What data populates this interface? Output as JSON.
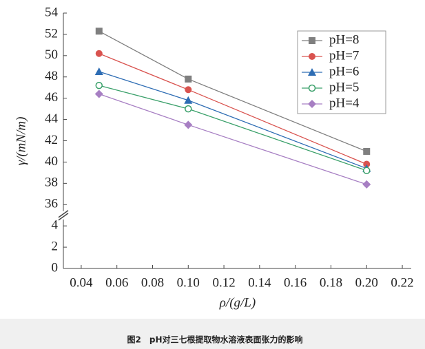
{
  "chart_data": {
    "type": "line",
    "x_label": "ρ/(g/L)",
    "y_label": "γ/(mN/m)",
    "x": [
      0.05,
      0.1,
      0.2
    ],
    "series": [
      {
        "name": "pH=8",
        "color": "#7f7f7f",
        "marker": "square",
        "values": [
          52.3,
          47.8,
          41.0
        ]
      },
      {
        "name": "pH=7",
        "color": "#d9534f",
        "marker": "circle",
        "values": [
          50.2,
          46.8,
          39.8
        ]
      },
      {
        "name": "pH=6",
        "color": "#2e6db4",
        "marker": "triangle",
        "values": [
          48.5,
          45.8,
          39.4
        ]
      },
      {
        "name": "pH=5",
        "color": "#3aa06a",
        "marker": "open-circle",
        "values": [
          47.2,
          45.0,
          39.2
        ]
      },
      {
        "name": "pH=4",
        "color": "#a77fc3",
        "marker": "diamond",
        "values": [
          46.4,
          43.5,
          37.9
        ]
      }
    ],
    "xlim": [
      0.03,
      0.225
    ],
    "xticks": [
      0.04,
      0.06,
      0.08,
      {
        "value": 0.1,
        "label": "0.10"
      },
      0.12,
      0.14,
      0.16,
      0.18,
      {
        "value": 0.2,
        "label": "0.20"
      },
      0.22
    ],
    "ylim": [
      0,
      54
    ],
    "y_break": [
      5,
      35
    ],
    "yticks": [
      0,
      2,
      4,
      36,
      38,
      40,
      42,
      44,
      46,
      48,
      50,
      52,
      54
    ],
    "legend": "upper right",
    "caption": "图2　pH对三七根提取物水溶液表面张力的影响"
  }
}
